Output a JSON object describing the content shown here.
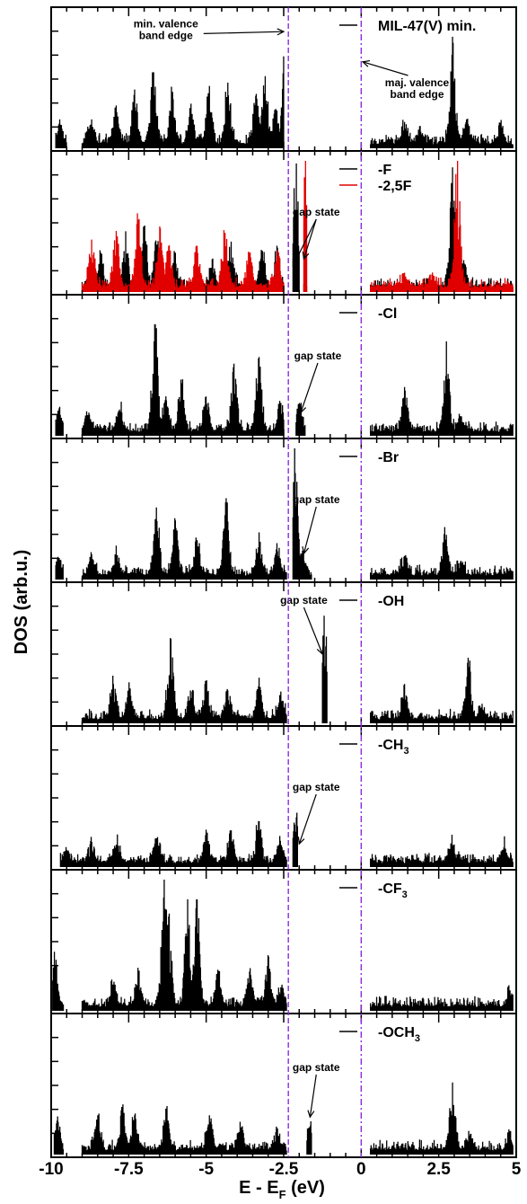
{
  "chart_data": {
    "type": "line",
    "title": "",
    "xlabel_main": "E - E",
    "xlabel_sub": "F",
    "xlabel_unit": " (eV)",
    "ylabel": "DOS (arb.u.)",
    "xlim": [
      -10,
      5
    ],
    "xticks": [
      {
        "value": -10,
        "label": "-10"
      },
      {
        "value": -7.5,
        "label": "-7.5"
      },
      {
        "value": -5,
        "label": "-5"
      },
      {
        "value": -2.5,
        "label": "-2.5"
      },
      {
        "value": 0,
        "label": "0"
      },
      {
        "value": 2.5,
        "label": "2.5"
      },
      {
        "value": 5,
        "label": "5"
      }
    ],
    "reference_lines": [
      {
        "x": -2.35,
        "style": "dashed",
        "color": "#8a2be2"
      },
      {
        "x": 0,
        "style": "dash-dot",
        "color": "#8a2be2"
      }
    ],
    "colors": {
      "black": "#000000",
      "red": "#e00000",
      "ref": "#8a2be2"
    },
    "panels": [
      {
        "legend": [
          {
            "label": "MIL-47(V) min.",
            "color": "#000000"
          }
        ],
        "series": [
          {
            "name": "MIL-47(V) min.",
            "color": "#000000",
            "ranges": [
              [
                -9.85,
                -9.5
              ],
              [
                -9.0,
                -2.5
              ],
              [
                0.3,
                4.9
              ]
            ],
            "peaks": [
              [
                -9.7,
                0.18
              ],
              [
                -8.7,
                0.22
              ],
              [
                -7.9,
                0.3
              ],
              [
                -7.3,
                0.42
              ],
              [
                -6.7,
                0.58
              ],
              [
                -6.1,
                0.4
              ],
              [
                -5.5,
                0.3
              ],
              [
                -4.9,
                0.45
              ],
              [
                -4.3,
                0.5
              ],
              [
                -3.4,
                0.4
              ],
              [
                -3.1,
                0.55
              ],
              [
                -2.75,
                0.3
              ],
              [
                -2.45,
                0.82
              ],
              [
                1.4,
                0.2
              ],
              [
                1.9,
                0.12
              ],
              [
                2.95,
                0.85
              ],
              [
                3.4,
                0.22
              ],
              [
                4.5,
                0.18
              ]
            ]
          }
        ],
        "annotations": [
          {
            "lines": [
              "min. valence",
              "band edge"
            ],
            "tx": -6.3,
            "ty": 0.86,
            "ax": -2.5,
            "ay": 0.83
          },
          {
            "lines": [
              "maj. valence",
              "band edge"
            ],
            "tx": 1.8,
            "ty": 0.45,
            "ax": 0.05,
            "ay": 0.62
          }
        ]
      },
      {
        "legend": [
          {
            "label": "-F",
            "color": "#000000"
          },
          {
            "label": "-2,5F",
            "color": "#e00000"
          }
        ],
        "series": [
          {
            "name": "-F",
            "color": "#000000",
            "ranges": [
              [
                -9.0,
                -2.5
              ],
              [
                -2.2,
                -2.0
              ],
              [
                -1.85,
                -1.75
              ],
              [
                0.3,
                4.9
              ]
            ],
            "peaks": [
              [
                -8.4,
                0.3
              ],
              [
                -7.6,
                0.4
              ],
              [
                -7.0,
                0.5
              ],
              [
                -6.6,
                0.35
              ],
              [
                -6.0,
                0.3
              ],
              [
                -4.8,
                0.25
              ],
              [
                -4.2,
                0.35
              ],
              [
                -3.2,
                0.3
              ],
              [
                -2.7,
                0.32
              ],
              [
                -2.1,
                0.98
              ],
              [
                2.95,
                0.95
              ],
              [
                3.3,
                0.2
              ]
            ]
          },
          {
            "name": "-2,5F",
            "color": "#e00000",
            "ranges": [
              [
                -9.0,
                -2.5
              ],
              [
                -1.85,
                -1.75
              ],
              [
                0.3,
                4.9
              ]
            ],
            "peaks": [
              [
                -8.7,
                0.4
              ],
              [
                -7.9,
                0.45
              ],
              [
                -7.2,
                0.55
              ],
              [
                -6.5,
                0.5
              ],
              [
                -6.2,
                0.35
              ],
              [
                -5.3,
                0.35
              ],
              [
                -4.4,
                0.45
              ],
              [
                -3.6,
                0.3
              ],
              [
                -2.7,
                0.28
              ],
              [
                -1.8,
                1.0
              ],
              [
                3.1,
                1.0
              ],
              [
                1.4,
                0.12
              ],
              [
                2.3,
                0.1
              ]
            ]
          }
        ],
        "annotations": [
          {
            "lines": [
              "gap state"
            ],
            "tx": -1.45,
            "ty": 0.55,
            "ax": -2.2,
            "ay": 0.2
          },
          {
            "lines": [],
            "tx": -1.45,
            "ty": 0.55,
            "ax": -1.85,
            "ay": 0.25
          }
        ]
      },
      {
        "legend": [
          {
            "label": "-Cl",
            "color": "#000000"
          }
        ],
        "series": [
          {
            "name": "-Cl",
            "color": "#000000",
            "ranges": [
              [
                -9.85,
                -9.6
              ],
              [
                -9.0,
                -2.5
              ],
              [
                -2.1,
                -1.8
              ],
              [
                0.3,
                4.9
              ]
            ],
            "peaks": [
              [
                -9.75,
                0.18
              ],
              [
                -8.8,
                0.15
              ],
              [
                -7.8,
                0.2
              ],
              [
                -6.65,
                0.85
              ],
              [
                -6.3,
                0.3
              ],
              [
                -5.8,
                0.4
              ],
              [
                -5.0,
                0.3
              ],
              [
                -4.1,
                0.55
              ],
              [
                -3.3,
                0.6
              ],
              [
                -2.6,
                0.25
              ],
              [
                -2.0,
                0.25
              ],
              [
                1.4,
                0.37
              ],
              [
                2.75,
                0.72
              ],
              [
                3.2,
                0.15
              ]
            ]
          }
        ],
        "annotations": [
          {
            "lines": [
              "gap state"
            ],
            "tx": -1.4,
            "ty": 0.55,
            "ax": -1.95,
            "ay": 0.18
          }
        ]
      },
      {
        "legend": [
          {
            "label": "-Br",
            "color": "#000000"
          }
        ],
        "series": [
          {
            "name": "-Br",
            "color": "#000000",
            "ranges": [
              [
                -9.85,
                -9.6
              ],
              [
                -9.0,
                -2.4
              ],
              [
                -2.2,
                -1.6
              ],
              [
                0.3,
                4.9
              ]
            ],
            "peaks": [
              [
                -9.75,
                0.12
              ],
              [
                -8.7,
                0.15
              ],
              [
                -7.9,
                0.18
              ],
              [
                -6.6,
                0.55
              ],
              [
                -6.0,
                0.45
              ],
              [
                -5.3,
                0.3
              ],
              [
                -4.35,
                0.62
              ],
              [
                -3.3,
                0.3
              ],
              [
                -2.7,
                0.2
              ],
              [
                -2.15,
                1.0
              ],
              [
                -1.9,
                0.22
              ],
              [
                1.4,
                0.18
              ],
              [
                2.7,
                0.4
              ],
              [
                3.2,
                0.12
              ]
            ]
          }
        ],
        "annotations": [
          {
            "lines": [
              "gap state"
            ],
            "tx": -1.45,
            "ty": 0.55,
            "ax": -1.85,
            "ay": 0.2
          }
        ]
      },
      {
        "legend": [
          {
            "label": "-OH",
            "color": "#000000"
          }
        ],
        "series": [
          {
            "name": "-OH",
            "color": "#000000",
            "ranges": [
              [
                -9.0,
                -2.4
              ],
              [
                -1.25,
                -1.1
              ],
              [
                0.3,
                4.9
              ]
            ],
            "peaks": [
              [
                -8.0,
                0.3
              ],
              [
                -7.5,
                0.25
              ],
              [
                -6.15,
                0.65
              ],
              [
                -5.5,
                0.25
              ],
              [
                -5.0,
                0.3
              ],
              [
                -4.3,
                0.25
              ],
              [
                -3.3,
                0.3
              ],
              [
                -2.6,
                0.2
              ],
              [
                -1.2,
                0.82
              ],
              [
                1.4,
                0.3
              ],
              [
                3.45,
                0.5
              ],
              [
                3.9,
                0.12
              ]
            ]
          }
        ],
        "annotations": [
          {
            "lines": [
              "gap state"
            ],
            "tx": -1.85,
            "ty": 0.85,
            "ax": -1.25,
            "ay": 0.5
          }
        ]
      },
      {
        "legend": [
          {
            "label": "-CH",
            "sub": "3",
            "color": "#000000"
          }
        ],
        "series": [
          {
            "name": "-CH3",
            "color": "#000000",
            "ranges": [
              [
                -9.7,
                -2.4
              ],
              [
                -2.2,
                -2.05
              ],
              [
                0.3,
                4.9
              ]
            ],
            "peaks": [
              [
                -9.5,
                0.1
              ],
              [
                -8.7,
                0.15
              ],
              [
                -7.9,
                0.17
              ],
              [
                -6.6,
                0.22
              ],
              [
                -5.0,
                0.25
              ],
              [
                -4.2,
                0.28
              ],
              [
                -3.3,
                0.35
              ],
              [
                -2.6,
                0.2
              ],
              [
                -2.1,
                0.38
              ],
              [
                2.9,
                0.18
              ],
              [
                4.6,
                0.15
              ]
            ]
          }
        ],
        "annotations": [
          {
            "lines": [
              "gap state"
            ],
            "tx": -1.45,
            "ty": 0.55,
            "ax": -2.0,
            "ay": 0.18
          }
        ]
      },
      {
        "legend": [
          {
            "label": "-CF",
            "sub": "3",
            "color": "#000000"
          }
        ],
        "series": [
          {
            "name": "-CF3",
            "color": "#000000",
            "ranges": [
              [
                -9.95,
                -9.6
              ],
              [
                -9.0,
                -2.4
              ],
              [
                0.3,
                4.9
              ]
            ],
            "peaks": [
              [
                -9.9,
                0.45
              ],
              [
                -8.0,
                0.2
              ],
              [
                -7.2,
                0.3
              ],
              [
                -6.35,
                1.0
              ],
              [
                -6.2,
                0.72
              ],
              [
                -5.6,
                0.85
              ],
              [
                -5.3,
                0.85
              ],
              [
                -4.6,
                0.3
              ],
              [
                -3.6,
                0.3
              ],
              [
                -3.0,
                0.35
              ],
              [
                -2.6,
                0.18
              ],
              [
                4.8,
                0.12
              ]
            ]
          }
        ],
        "annotations": []
      },
      {
        "legend": [
          {
            "label": "-OCH",
            "sub": "3",
            "color": "#000000"
          }
        ],
        "series": [
          {
            "name": "-OCH3",
            "color": "#000000",
            "ranges": [
              [
                -9.9,
                -9.6
              ],
              [
                -9.0,
                -2.4
              ],
              [
                -1.75,
                -1.6
              ],
              [
                0.3,
                4.9
              ]
            ],
            "peaks": [
              [
                -9.8,
                0.25
              ],
              [
                -8.5,
                0.3
              ],
              [
                -7.7,
                0.35
              ],
              [
                -7.3,
                0.3
              ],
              [
                -6.3,
                0.35
              ],
              [
                -4.9,
                0.3
              ],
              [
                -3.9,
                0.25
              ],
              [
                -2.7,
                0.2
              ],
              [
                -1.65,
                0.22
              ],
              [
                2.95,
                0.55
              ],
              [
                3.5,
                0.12
              ],
              [
                4.8,
                0.12
              ]
            ]
          }
        ],
        "annotations": [
          {
            "lines": [
              "gap state"
            ],
            "tx": -1.45,
            "ty": 0.6,
            "ax": -1.65,
            "ay": 0.28
          }
        ]
      }
    ]
  }
}
